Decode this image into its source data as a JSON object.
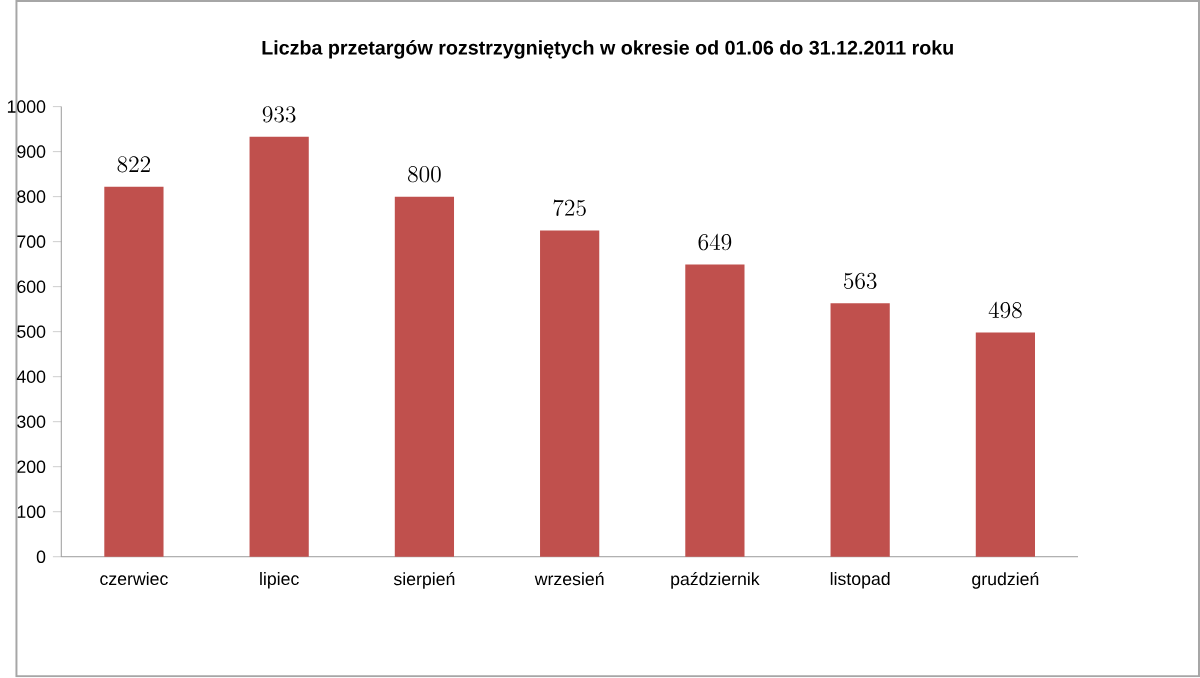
{
  "chart_data": {
    "type": "bar",
    "title": "Liczba przetargów rozstrzygniętych w okresie od 01.06 do 31.12.2011 roku",
    "categories": [
      "czerwiec",
      "lipiec",
      "sierpień",
      "wrzesień",
      "październik",
      "listopad",
      "grudzień"
    ],
    "values": [
      822,
      933,
      800,
      725,
      649,
      563,
      498
    ],
    "color": "#c0504d",
    "ylim": [
      0,
      1000
    ],
    "yticks": [
      0,
      100,
      200,
      300,
      400,
      500,
      600,
      700,
      800,
      900,
      1000
    ],
    "data_labels": true
  }
}
